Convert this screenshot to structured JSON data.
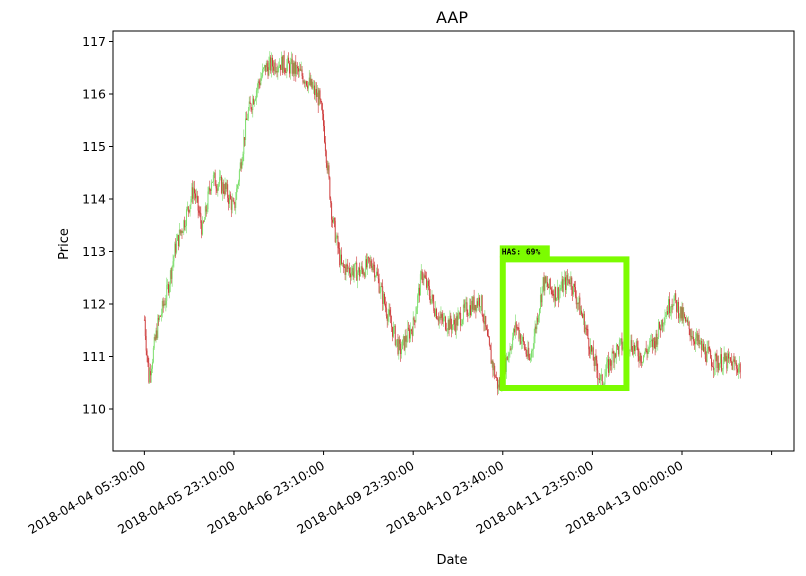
{
  "chart_data": {
    "type": "candlestick",
    "title": "AAP",
    "xlabel": "Date",
    "ylabel": "Price",
    "ylim": [
      109.2,
      117.2
    ],
    "y_ticks": [
      110,
      111,
      112,
      113,
      114,
      115,
      116,
      117
    ],
    "x_tick_labels": [
      "2018-04-04 05:30:00",
      "2018-04-05 23:10:00",
      "2018-04-06 23:10:00",
      "2018-04-09 23:30:00",
      "2018-04-10 23:40:00",
      "2018-04-11 23:50:00",
      "2018-04-13 00:00:00"
    ],
    "x_tick_positions": [
      0,
      100,
      200,
      300,
      400,
      500,
      600
    ],
    "xlim": [
      -35,
      725
    ],
    "up_color": "#77dd66",
    "down_color": "#cc3333",
    "close_anchors": [
      [
        0,
        111.7
      ],
      [
        5,
        110.6
      ],
      [
        15,
        111.6
      ],
      [
        25,
        112.2
      ],
      [
        35,
        113.1
      ],
      [
        45,
        113.6
      ],
      [
        55,
        114.2
      ],
      [
        65,
        113.4
      ],
      [
        75,
        114.4
      ],
      [
        90,
        114.2
      ],
      [
        100,
        113.8
      ],
      [
        115,
        115.6
      ],
      [
        125,
        116.1
      ],
      [
        135,
        116.5
      ],
      [
        150,
        116.6
      ],
      [
        165,
        116.5
      ],
      [
        180,
        116.3
      ],
      [
        195,
        115.9
      ],
      [
        200,
        115.4
      ],
      [
        210,
        113.6
      ],
      [
        220,
        112.7
      ],
      [
        240,
        112.6
      ],
      [
        255,
        112.8
      ],
      [
        270,
        111.9
      ],
      [
        285,
        111.1
      ],
      [
        300,
        111.6
      ],
      [
        310,
        112.6
      ],
      [
        320,
        112.1
      ],
      [
        330,
        111.7
      ],
      [
        345,
        111.6
      ],
      [
        360,
        111.9
      ],
      [
        375,
        112.1
      ],
      [
        385,
        111.1
      ],
      [
        395,
        110.4
      ],
      [
        405,
        111.0
      ],
      [
        415,
        111.6
      ],
      [
        430,
        110.9
      ],
      [
        445,
        112.4
      ],
      [
        460,
        112.2
      ],
      [
        475,
        112.5
      ],
      [
        490,
        111.7
      ],
      [
        500,
        111.0
      ],
      [
        510,
        110.5
      ],
      [
        525,
        111.1
      ],
      [
        540,
        111.3
      ],
      [
        555,
        111.0
      ],
      [
        570,
        111.3
      ],
      [
        580,
        111.8
      ],
      [
        590,
        112.1
      ],
      [
        605,
        111.6
      ],
      [
        620,
        111.2
      ],
      [
        635,
        110.9
      ],
      [
        650,
        110.9
      ],
      [
        665,
        110.8
      ]
    ],
    "annotation": {
      "label": "HAS: 69%",
      "x_range": [
        400,
        538
      ],
      "y_range": [
        110.4,
        112.85
      ],
      "color": "#7cfc00"
    }
  }
}
